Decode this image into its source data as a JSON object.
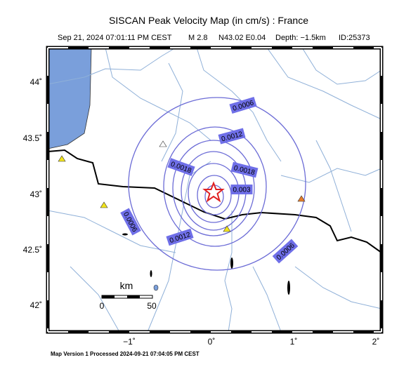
{
  "header": {
    "title": "SISCAN Peak Velocity Map (in cm/s) : France",
    "info": [
      "Sep 21, 2024 07:01:11 PM CEST",
      "M 2.8",
      "N43.02 E0.04",
      "Depth: −1.5km",
      "ID:25373"
    ]
  },
  "map": {
    "lon_labels": [
      "−1˚",
      "0˚",
      "1˚",
      "2˚"
    ],
    "lat_labels": [
      "44˚",
      "43.5˚",
      "43˚",
      "42.5˚",
      "42˚"
    ],
    "contour_labels": [
      "0.0006",
      "0.0012",
      "0.0018",
      "0.0018",
      "0.003",
      "0.0006",
      "0.0012",
      "0.0006"
    ],
    "scale": {
      "title": "km",
      "labels": [
        "0",
        "50"
      ]
    }
  },
  "footer": "Map Version 1 Processed 2024-09-21 07:04:05 PM CEST"
}
